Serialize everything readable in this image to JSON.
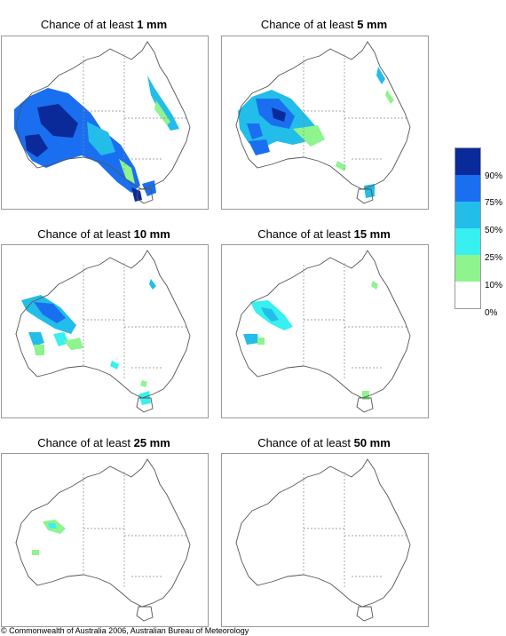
{
  "panels": [
    {
      "prefix": "Chance of at least ",
      "value": "1 mm"
    },
    {
      "prefix": "Chance of at least ",
      "value": "5 mm"
    },
    {
      "prefix": "Chance of at least ",
      "value": "10 mm"
    },
    {
      "prefix": "Chance of at least ",
      "value": "15 mm"
    },
    {
      "prefix": "Chance of at least ",
      "value": "25 mm"
    },
    {
      "prefix": "Chance of at least ",
      "value": "50 mm"
    }
  ],
  "legend": {
    "labels": [
      "90%",
      "75%",
      "50%",
      "25%",
      "10%",
      "0%"
    ],
    "colors": [
      "#0a2a9a",
      "#1a6ff0",
      "#22bde8",
      "#38f0f0",
      "#8ef48e",
      "#ffffff"
    ]
  },
  "copyright": "© Commonwealth of Australia 2006, Australian Bureau of Meteorology"
}
